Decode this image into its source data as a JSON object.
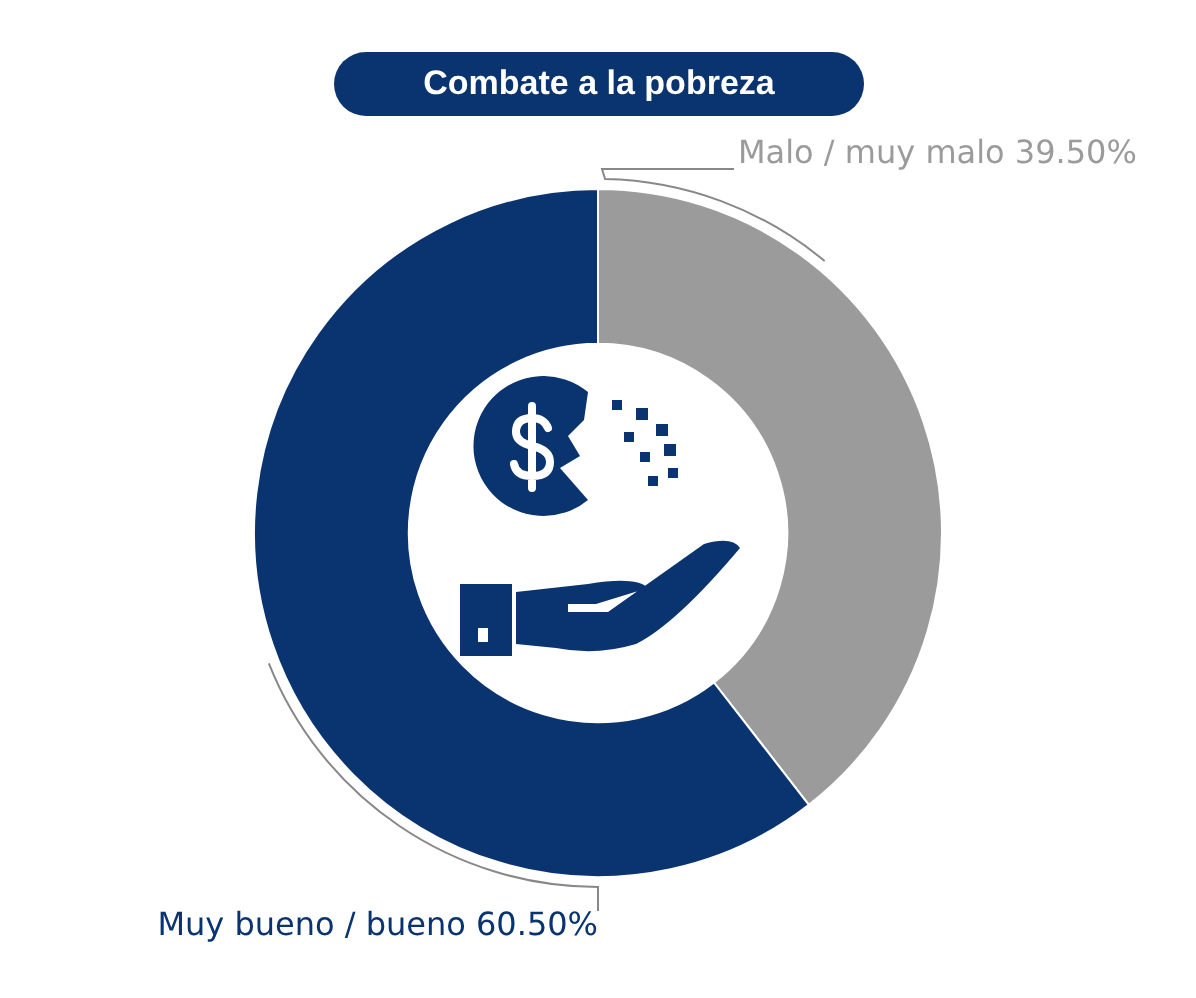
{
  "chart_data": {
    "type": "donut",
    "title": "Combate a la pobreza",
    "categories": [
      "Malo / muy malo",
      "Muy bueno / bueno"
    ],
    "values": [
      39.5,
      60.5
    ],
    "colors": [
      "#9b9b9b",
      "#0a346f"
    ],
    "value_labels": [
      "39.50%",
      "60.50%"
    ],
    "legend": false
  }
}
